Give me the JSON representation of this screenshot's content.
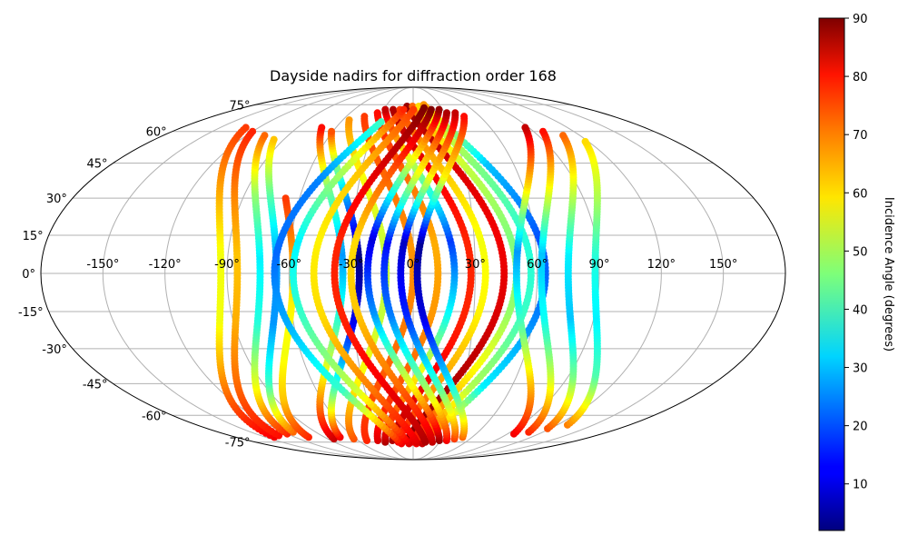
{
  "chart_data": {
    "type": "scatter",
    "projection": "mollweide",
    "title": "Dayside nadirs for diffraction order 168",
    "grid": true,
    "lon_ticks": [
      "-150°",
      "-120°",
      "-90°",
      "-60°",
      "-30°",
      "0°",
      "30°",
      "60°",
      "90°",
      "120°",
      "150°"
    ],
    "lon_tick_values": [
      -150,
      -120,
      -90,
      -60,
      -30,
      0,
      30,
      60,
      90,
      120,
      150
    ],
    "lat_ticks": [
      "75°",
      "60°",
      "45°",
      "30°",
      "15°",
      "0°",
      "-15°",
      "-30°",
      "-45°",
      "-60°",
      "-75°"
    ],
    "lat_tick_values": [
      75,
      60,
      45,
      30,
      15,
      0,
      -15,
      -30,
      -45,
      -60,
      -75
    ],
    "colorbar": {
      "label": "Incidence Angle (degrees)",
      "colormap": "jet",
      "range": [
        2,
        90
      ],
      "ticks": [
        "10",
        "20",
        "30",
        "40",
        "50",
        "60",
        "70",
        "80",
        "90"
      ],
      "tick_values": [
        10,
        20,
        30,
        40,
        50,
        60,
        70,
        80,
        90
      ]
    },
    "series": [
      {
        "lon0": -163,
        "dir": 1,
        "lat_range": [
          -72,
          62
        ],
        "incidence": [
          80,
          68,
          56,
          56,
          65,
          74
        ]
      },
      {
        "lon0": -155,
        "dir": 1,
        "lat_range": [
          -71,
          60
        ],
        "incidence": [
          78,
          70,
          64,
          62,
          68,
          76
        ]
      },
      {
        "lon0": -144,
        "dir": 1,
        "lat_range": [
          -70,
          58
        ],
        "incidence": [
          76,
          55,
          38,
          34,
          48,
          70
        ]
      },
      {
        "lon0": -136,
        "dir": 1,
        "lat_range": [
          -69,
          56
        ],
        "incidence": [
          70,
          40,
          26,
          26,
          42,
          62
        ]
      },
      {
        "lon0": -128,
        "dir": 1,
        "lat_range": [
          -72,
          30
        ],
        "incidence": [
          76,
          62,
          56,
          58,
          66,
          74
        ]
      },
      {
        "lon0": -104,
        "dir": 1,
        "lat_range": [
          -73,
          62
        ],
        "incidence": [
          84,
          62,
          40,
          26,
          46,
          78
        ]
      },
      {
        "lon0": -96,
        "dir": 1,
        "lat_range": [
          -72,
          60
        ],
        "incidence": [
          80,
          40,
          12,
          2,
          30,
          72
        ]
      },
      {
        "lon0": -83,
        "dir": 1,
        "lat_range": [
          -73,
          66
        ],
        "incidence": [
          72,
          58,
          52,
          52,
          56,
          66
        ]
      },
      {
        "lon0": -70,
        "dir": 1,
        "lat_range": [
          -74,
          68
        ],
        "incidence": [
          76,
          72,
          68,
          66,
          70,
          74
        ]
      },
      {
        "lon0": -58,
        "dir": 1,
        "lat_range": [
          -74,
          70
        ],
        "incidence": [
          82,
          72,
          66,
          64,
          70,
          78
        ]
      },
      {
        "lon0": -50,
        "dir": 1,
        "lat_range": [
          -75,
          72
        ],
        "incidence": [
          86,
          62,
          36,
          18,
          48,
          84
        ]
      },
      {
        "lon0": -42,
        "dir": 1,
        "lat_range": [
          -74,
          72
        ],
        "incidence": [
          86,
          80,
          76,
          76,
          80,
          86
        ]
      },
      {
        "lon0": -35,
        "dir": 1,
        "lat_range": [
          -75,
          72
        ],
        "incidence": [
          80,
          66,
          58,
          56,
          62,
          74
        ]
      },
      {
        "lon0": -26,
        "dir": 1,
        "lat_range": [
          -74,
          74
        ],
        "incidence": [
          90,
          86,
          82,
          80,
          82,
          88
        ]
      },
      {
        "lon0": -20,
        "dir": 1,
        "lat_range": [
          -75,
          74
        ],
        "incidence": [
          80,
          60,
          48,
          46,
          52,
          70
        ]
      },
      {
        "lon0": -13,
        "dir": 1,
        "lat_range": [
          -76,
          74
        ],
        "incidence": [
          80,
          50,
          40,
          38,
          46,
          60
        ]
      },
      {
        "lon0": -6,
        "dir": 1,
        "lat_range": [
          -76,
          75
        ],
        "incidence": [
          84,
          34,
          24,
          20,
          30,
          66
        ]
      },
      {
        "lon0": 3,
        "dir": -1,
        "lat_range": [
          -76,
          65
        ],
        "incidence": [
          80,
          40,
          28,
          22,
          24,
          40
        ]
      },
      {
        "lon0": 12,
        "dir": -1,
        "lat_range": [
          -76,
          72
        ],
        "incidence": [
          82,
          52,
          40,
          34,
          50,
          76
        ]
      },
      {
        "lon0": 22,
        "dir": -1,
        "lat_range": [
          -75,
          72
        ],
        "incidence": [
          82,
          68,
          60,
          58,
          62,
          74
        ]
      },
      {
        "lon0": 32,
        "dir": -1,
        "lat_range": [
          -75,
          73
        ],
        "incidence": [
          86,
          80,
          76,
          76,
          82,
          90
        ]
      },
      {
        "lon0": 40,
        "dir": -1,
        "lat_range": [
          -75,
          72
        ],
        "incidence": [
          84,
          70,
          62,
          60,
          72,
          90
        ]
      },
      {
        "lon0": 48,
        "dir": -1,
        "lat_range": [
          -74,
          72
        ],
        "incidence": [
          88,
          56,
          26,
          10,
          50,
          88
        ]
      },
      {
        "lon0": 56,
        "dir": -1,
        "lat_range": [
          -74,
          70
        ],
        "incidence": [
          80,
          48,
          24,
          14,
          56,
          86
        ]
      },
      {
        "lon0": 64,
        "dir": -1,
        "lat_range": [
          -73,
          70
        ],
        "incidence": [
          74,
          40,
          16,
          8,
          60,
          84
        ]
      },
      {
        "lon0": 72,
        "dir": -1,
        "lat_range": [
          -72,
          68
        ],
        "incidence": [
          70,
          34,
          10,
          4,
          58,
          78
        ]
      },
      {
        "lon0": 120,
        "dir": -1,
        "lat_range": [
          -70,
          62
        ],
        "incidence": [
          80,
          62,
          40,
          26,
          60,
          84
        ]
      },
      {
        "lon0": 132,
        "dir": -1,
        "lat_range": [
          -69,
          60
        ],
        "incidence": [
          76,
          54,
          36,
          30,
          56,
          78
        ]
      },
      {
        "lon0": 145,
        "dir": -1,
        "lat_range": [
          -67,
          58
        ],
        "incidence": [
          72,
          46,
          30,
          34,
          52,
          70
        ]
      },
      {
        "lon0": 158,
        "dir": -1,
        "lat_range": [
          -65,
          55
        ],
        "incidence": [
          68,
          42,
          34,
          38,
          50,
          60
        ]
      }
    ]
  }
}
